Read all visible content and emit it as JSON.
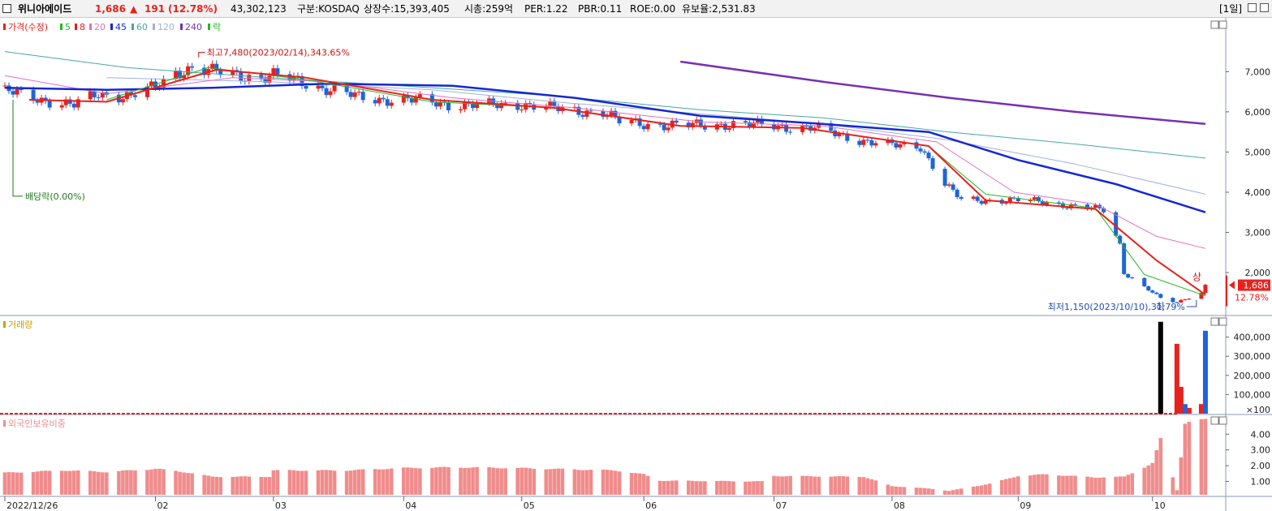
{
  "header": {
    "name": "위니아에이드",
    "price": "1,686",
    "arrow": "▲",
    "change": "191",
    "change_pct": "(12.78%)",
    "volume": "43,302,123",
    "market": "구분:KOSDAQ",
    "shares": "상장수:15,393,405",
    "market_cap": "시총:259억",
    "per": "PER:1.22",
    "pbr": "PBR:0.11",
    "roe": "ROE:0.00",
    "reserve": "유보율:2,531.83",
    "period": "[1일]"
  },
  "colors": {
    "up": "#e8211c",
    "down": "#1f64d8",
    "ma5": "#22b822",
    "ma8": "#e8211c",
    "ma20": "#e070c0",
    "ma45": "#1428d2",
    "ma60": "#48a8a0",
    "ma120": "#a0b0e0",
    "ma240": "#7830b0",
    "foreign": "#f08c8c"
  },
  "chart_data": [
    {
      "type": "line",
      "title": "가격(수정)",
      "legend": [
        {
          "label": "가격(수정)",
          "color": "#e8211c"
        },
        {
          "label": "5",
          "color": "#22b822"
        },
        {
          "label": "8",
          "color": "#e8211c"
        },
        {
          "label": "20",
          "color": "#e070c0"
        },
        {
          "label": "45",
          "color": "#1428d2"
        },
        {
          "label": "60",
          "color": "#48a8a0"
        },
        {
          "label": "120",
          "color": "#a0b0e0"
        },
        {
          "label": "240",
          "color": "#7830b0"
        },
        {
          "label": "락",
          "color": "#22b822"
        }
      ],
      "x_labels": [
        "2022/12/26",
        "02",
        "03",
        "04",
        "05",
        "06",
        "07",
        "08",
        "09",
        "10"
      ],
      "x_label_dates": [
        "2022-12-26",
        "2023-02-01",
        "2023-03-02",
        "2023-04-03",
        "2023-05-02",
        "2023-06-01",
        "2023-07-03",
        "2023-08-01",
        "2023-09-01",
        "2023-10-04"
      ],
      "x_range": [
        "2022-12-26",
        "2023-10-20"
      ],
      "y_ticks": [
        2000,
        3000,
        4000,
        5000,
        6000,
        7000
      ],
      "y_tick_labels": [
        "2,000",
        "3,000",
        "4,000",
        "5,000",
        "6,000",
        "7,000"
      ],
      "ylim": [
        950,
        8300
      ],
      "close_series": [
        [
          "2022-12-26",
          6500
        ],
        [
          "2023-01-05",
          6300
        ],
        [
          "2023-01-12",
          6150
        ],
        [
          "2023-01-18",
          6450
        ],
        [
          "2023-01-26",
          6400
        ],
        [
          "2023-02-01",
          6600
        ],
        [
          "2023-02-06",
          7000
        ],
        [
          "2023-02-10",
          7100
        ],
        [
          "2023-02-14",
          7000
        ],
        [
          "2023-02-20",
          6950
        ],
        [
          "2023-02-27",
          6850
        ],
        [
          "2023-03-02",
          6900
        ],
        [
          "2023-03-09",
          6750
        ],
        [
          "2023-03-16",
          6550
        ],
        [
          "2023-03-23",
          6350
        ],
        [
          "2023-04-03",
          6300
        ],
        [
          "2023-04-14",
          6200
        ],
        [
          "2023-04-24",
          6150
        ],
        [
          "2023-05-02",
          6200
        ],
        [
          "2023-05-12",
          6050
        ],
        [
          "2023-05-22",
          6000
        ],
        [
          "2023-05-26",
          5750
        ],
        [
          "2023-06-01",
          5700
        ],
        [
          "2023-06-12",
          5650
        ],
        [
          "2023-06-22",
          5700
        ],
        [
          "2023-07-03",
          5650
        ],
        [
          "2023-07-12",
          5600
        ],
        [
          "2023-07-20",
          5400
        ],
        [
          "2023-07-27",
          5250
        ],
        [
          "2023-08-01",
          5150
        ],
        [
          "2023-08-08",
          5150
        ],
        [
          "2023-08-14",
          4200
        ],
        [
          "2023-08-18",
          3800
        ],
        [
          "2023-08-24",
          3800
        ],
        [
          "2023-09-01",
          3800
        ],
        [
          "2023-09-08",
          3750
        ],
        [
          "2023-09-15",
          3650
        ],
        [
          "2023-09-22",
          3550
        ],
        [
          "2023-09-26",
          2700
        ],
        [
          "2023-09-27",
          2000
        ],
        [
          "2023-10-04",
          1500
        ],
        [
          "2023-10-06",
          1350
        ],
        [
          "2023-10-10",
          1250
        ],
        [
          "2023-10-12",
          1350
        ],
        [
          "2023-10-16",
          1495
        ],
        [
          "2023-10-17",
          1686
        ]
      ],
      "ma5": [
        [
          "2023-01-20",
          6300
        ],
        [
          "2023-02-14",
          7100
        ],
        [
          "2023-03-10",
          6800
        ],
        [
          "2023-04-10",
          6250
        ],
        [
          "2023-05-10",
          6100
        ],
        [
          "2023-06-10",
          5650
        ],
        [
          "2023-07-10",
          5600
        ],
        [
          "2023-08-10",
          5150
        ],
        [
          "2023-08-24",
          3950
        ],
        [
          "2023-09-20",
          3600
        ],
        [
          "2023-10-02",
          1950
        ],
        [
          "2023-10-17",
          1420
        ]
      ],
      "ma8": [
        [
          "2023-01-01",
          6300
        ],
        [
          "2023-01-20",
          6250
        ],
        [
          "2023-02-16",
          7050
        ],
        [
          "2023-03-10",
          6850
        ],
        [
          "2023-04-10",
          6300
        ],
        [
          "2023-05-10",
          6100
        ],
        [
          "2023-06-10",
          5650
        ],
        [
          "2023-07-10",
          5600
        ],
        [
          "2023-08-10",
          5150
        ],
        [
          "2023-08-24",
          3800
        ],
        [
          "2023-09-20",
          3580
        ],
        [
          "2023-10-05",
          2300
        ],
        [
          "2023-10-16",
          1520
        ],
        [
          "2023-10-17",
          1450
        ]
      ],
      "ma20": [
        [
          "2022-12-26",
          6900
        ],
        [
          "2023-01-20",
          6450
        ],
        [
          "2023-02-20",
          6850
        ],
        [
          "2023-03-15",
          6750
        ],
        [
          "2023-04-15",
          6350
        ],
        [
          "2023-05-15",
          6100
        ],
        [
          "2023-06-15",
          5750
        ],
        [
          "2023-07-15",
          5650
        ],
        [
          "2023-08-12",
          5250
        ],
        [
          "2023-08-31",
          4000
        ],
        [
          "2023-09-20",
          3700
        ],
        [
          "2023-10-05",
          2900
        ],
        [
          "2023-10-17",
          2600
        ]
      ],
      "ma45": [
        [
          "2022-12-26",
          6600
        ],
        [
          "2023-01-20",
          6550
        ],
        [
          "2023-02-15",
          6600
        ],
        [
          "2023-03-15",
          6700
        ],
        [
          "2023-04-15",
          6650
        ],
        [
          "2023-05-15",
          6350
        ],
        [
          "2023-06-15",
          5900
        ],
        [
          "2023-07-15",
          5700
        ],
        [
          "2023-08-10",
          5500
        ],
        [
          "2023-09-01",
          4800
        ],
        [
          "2023-09-25",
          4200
        ],
        [
          "2023-10-17",
          3500
        ]
      ],
      "ma60": [
        [
          "2022-12-26",
          7500
        ],
        [
          "2023-01-25",
          7100
        ],
        [
          "2023-03-01",
          6850
        ],
        [
          "2023-04-10",
          6600
        ],
        [
          "2023-05-10",
          6400
        ],
        [
          "2023-06-15",
          6050
        ],
        [
          "2023-07-15",
          5850
        ],
        [
          "2023-08-15",
          5500
        ],
        [
          "2023-09-15",
          5200
        ],
        [
          "2023-10-17",
          4850
        ]
      ],
      "ma120": [
        [
          "2023-01-20",
          6850
        ],
        [
          "2023-03-01",
          6750
        ],
        [
          "2023-04-10",
          6550
        ],
        [
          "2023-05-10",
          6250
        ],
        [
          "2023-06-15",
          5950
        ],
        [
          "2023-07-15",
          5700
        ],
        [
          "2023-08-15",
          5300
        ],
        [
          "2023-09-15",
          4700
        ],
        [
          "2023-10-17",
          3950
        ]
      ],
      "ma240": [
        [
          "2023-06-10",
          7250
        ],
        [
          "2023-07-15",
          6750
        ],
        [
          "2023-08-15",
          6350
        ],
        [
          "2023-09-15",
          6000
        ],
        [
          "2023-10-17",
          5700
        ]
      ],
      "annotations": [
        {
          "text": "최고7,480(2023/02/14),343.65%",
          "date": "2023-02-14",
          "value": 7480,
          "color": "#cc1010"
        },
        {
          "text": "배당락(0.00%)",
          "date": "2022-12-28",
          "value": 3900,
          "color": "#1e7a1e"
        },
        {
          "text": "최저1,150(2023/10/10),31.79%",
          "date": "2023-10-10",
          "value": 1150,
          "color": "#1f4fb0"
        },
        {
          "text": "상",
          "date": "2023-10-17",
          "value": 1686,
          "color": "#cc1010"
        },
        {
          "text": "하",
          "date": "2023-10-06",
          "value": 1150,
          "color": "#1f4fb0"
        }
      ],
      "current_price": {
        "label": "1,686",
        "value": 1686,
        "pct": "12.78%"
      }
    },
    {
      "type": "bar",
      "title": "거래량",
      "y_ticks": [
        100000,
        200000,
        300000,
        400000
      ],
      "y_tick_labels": [
        "100,000",
        "200,000",
        "300,000",
        "400,000"
      ],
      "y_unit": "×100",
      "ylim": [
        0,
        500000
      ],
      "values": [
        {
          "date": "2023-10-06",
          "value": 480000,
          "color": "#000000"
        },
        {
          "date": "2023-10-10",
          "value": 365000,
          "color": "#e8211c"
        },
        {
          "date": "2023-10-11",
          "value": 140000,
          "color": "#e8211c"
        },
        {
          "date": "2023-10-12",
          "value": 50000,
          "color": "#1f64d8"
        },
        {
          "date": "2023-10-13",
          "value": 30000,
          "color": "#e8211c"
        },
        {
          "date": "2023-10-16",
          "value": 50000,
          "color": "#e8211c"
        },
        {
          "date": "2023-10-17",
          "value": 433000,
          "color": "#1f64d8"
        }
      ]
    },
    {
      "type": "bar",
      "title": "외국인보유비중",
      "y_ticks": [
        1,
        2,
        3,
        4
      ],
      "y_tick_labels": [
        "1.00",
        "2.00",
        "3.00",
        "4.00"
      ],
      "ylim": [
        0.15,
        5.1
      ],
      "profile": [
        [
          "2022-12-26",
          1.55
        ],
        [
          "2023-01-10",
          1.7
        ],
        [
          "2023-01-20",
          1.6
        ],
        [
          "2023-02-01",
          1.8
        ],
        [
          "2023-02-08",
          1.6
        ],
        [
          "2023-02-15",
          1.3
        ],
        [
          "2023-03-01",
          1.3
        ],
        [
          "2023-03-02",
          1.7
        ],
        [
          "2023-03-20",
          1.7
        ],
        [
          "2023-04-03",
          1.85
        ],
        [
          "2023-04-15",
          1.9
        ],
        [
          "2023-05-01",
          1.85
        ],
        [
          "2023-05-25",
          1.7
        ],
        [
          "2023-06-01",
          1.45
        ],
        [
          "2023-06-05",
          1.05
        ],
        [
          "2023-06-30",
          1.0
        ],
        [
          "2023-07-01",
          1.35
        ],
        [
          "2023-07-25",
          1.3
        ],
        [
          "2023-08-01",
          0.7
        ],
        [
          "2023-08-10",
          0.55
        ],
        [
          "2023-08-15",
          0.4
        ],
        [
          "2023-08-25",
          0.85
        ],
        [
          "2023-09-01",
          1.35
        ],
        [
          "2023-09-08",
          1.45
        ],
        [
          "2023-09-20",
          1.25
        ],
        [
          "2023-09-27",
          1.3
        ],
        [
          "2023-10-04",
          2.15
        ],
        [
          "2023-10-06",
          3.7
        ],
        [
          "2023-10-10",
          0.45
        ],
        [
          "2023-10-12",
          4.7
        ],
        [
          "2023-10-17",
          4.9
        ]
      ]
    }
  ]
}
